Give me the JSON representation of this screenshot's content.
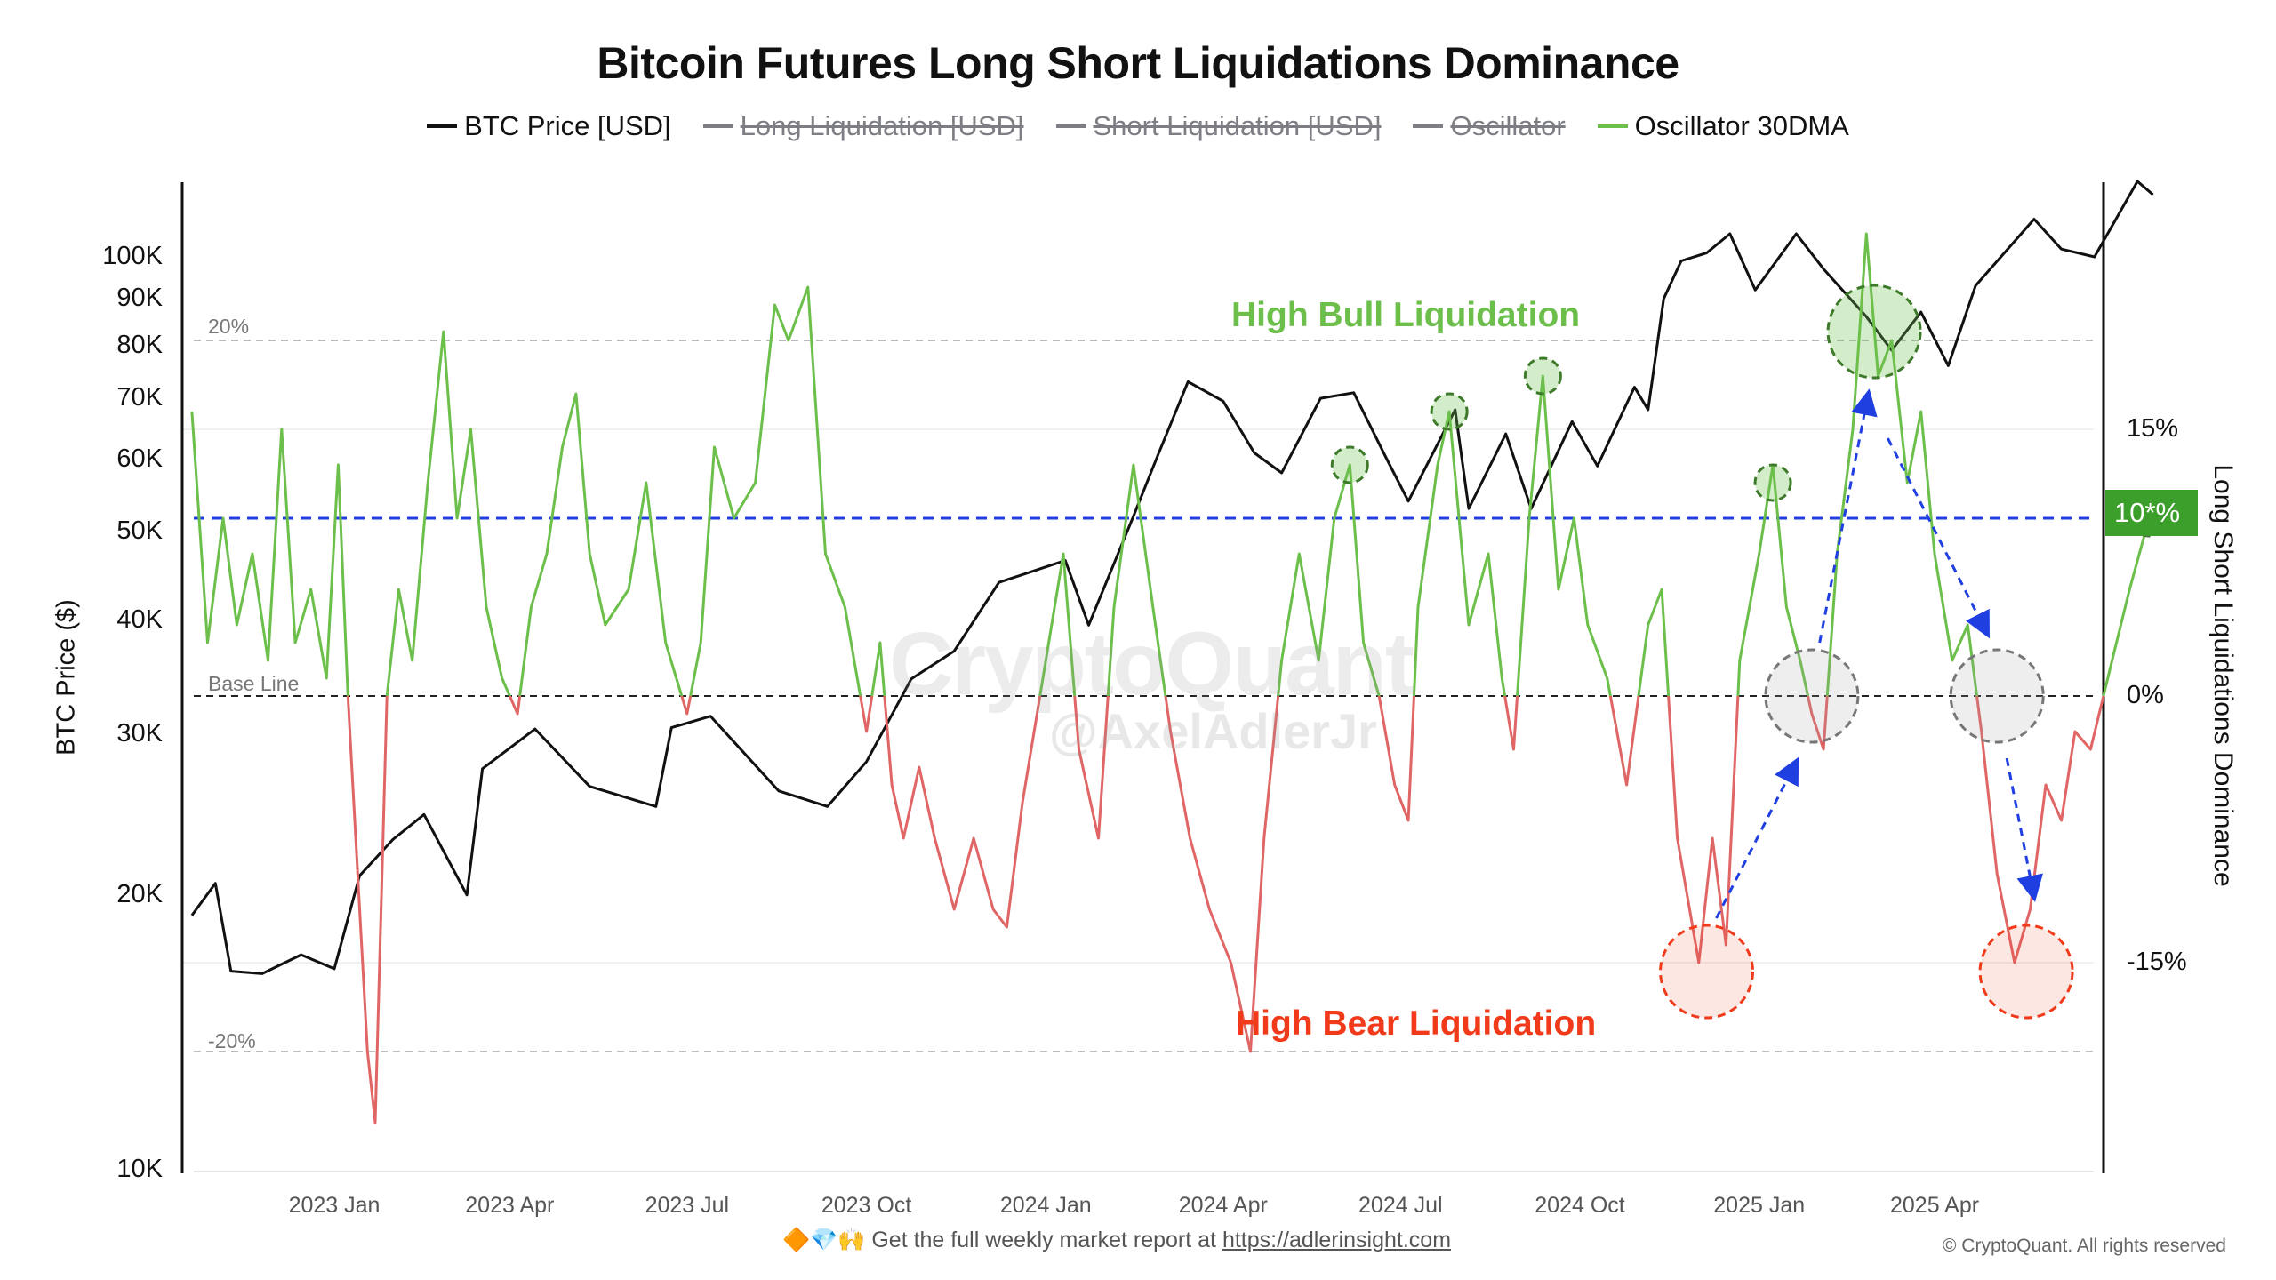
{
  "chart_data": {
    "type": "line",
    "title": "Bitcoin Futures Long Short Liquidations Dominance",
    "legend": [
      {
        "label": "BTC Price [USD]",
        "active": true,
        "color": "#111111"
      },
      {
        "label": "Long Liquidation [USD]",
        "active": false,
        "color": "#7d7d84"
      },
      {
        "label": "Short Liquidation [USD]",
        "active": false,
        "color": "#7d7d84"
      },
      {
        "label": "Oscillator",
        "active": false,
        "color": "#7d7d84"
      },
      {
        "label": "Oscillator 30DMA",
        "active": true,
        "color": "#6dbf4b"
      }
    ],
    "legend_position": "top-center",
    "ylabel_left": "BTC Price ($)",
    "ylabel_right": "Long Short Liquidations Dominance",
    "y_left_scale": "log",
    "y_left_range": [
      10000,
      140000
    ],
    "y_left_ticks": [
      {
        "value": 100000,
        "label": "100K"
      },
      {
        "value": 90000,
        "label": "90K"
      },
      {
        "value": 80000,
        "label": "80K"
      },
      {
        "value": 70000,
        "label": "70K"
      },
      {
        "value": 60000,
        "label": "60K"
      },
      {
        "value": 50000,
        "label": "50K"
      },
      {
        "value": 40000,
        "label": "40K"
      },
      {
        "value": 30000,
        "label": "30K"
      },
      {
        "value": 20000,
        "label": "20K"
      },
      {
        "value": 10000,
        "label": "10K"
      }
    ],
    "y_right_range": [
      -26,
      29
    ],
    "y_right_ticks": [
      {
        "value": 15,
        "label": "15%"
      },
      {
        "value": 0,
        "label": "0%"
      },
      {
        "value": -15,
        "label": "-15%"
      }
    ],
    "current_value_badge": {
      "value": 10,
      "label": "10*%",
      "color": "#3c9e2b"
    },
    "x_ticks": [
      {
        "date": "2023-01-01",
        "label": "2023 Jan"
      },
      {
        "date": "2023-04-01",
        "label": "2023 Apr"
      },
      {
        "date": "2023-07-01",
        "label": "2023 Jul"
      },
      {
        "date": "2023-10-01",
        "label": "2023 Oct"
      },
      {
        "date": "2024-01-01",
        "label": "2024 Jan"
      },
      {
        "date": "2024-04-01",
        "label": "2024 Apr"
      },
      {
        "date": "2024-07-01",
        "label": "2024 Jul"
      },
      {
        "date": "2024-10-01",
        "label": "2024 Oct"
      },
      {
        "date": "2025-01-01",
        "label": "2025 Jan"
      },
      {
        "date": "2025-04-01",
        "label": "2025 Apr"
      }
    ],
    "reference_lines": [
      {
        "value": 20,
        "label": "20%",
        "color": "#bbbbbb",
        "style": "dashed"
      },
      {
        "value": 0,
        "label": "Base Line",
        "color": "#222222",
        "style": "dashed"
      },
      {
        "value": -20,
        "label": "-20%",
        "color": "#bbbbbb",
        "style": "dashed"
      },
      {
        "value": 10,
        "label": "",
        "color": "#1f3fe0",
        "style": "dashed"
      }
    ],
    "annotations_text": [
      {
        "text": "High Bull Liquidation",
        "color": "#6dbf4b"
      },
      {
        "text": "High Bear Liquidation",
        "color": "#f03a1a"
      }
    ],
    "circles": [
      {
        "date": "2024-06-05",
        "value": 13,
        "kind": "bull-small"
      },
      {
        "date": "2024-07-26",
        "value": 16,
        "kind": "bull-small"
      },
      {
        "date": "2024-09-12",
        "value": 18,
        "kind": "bull-small"
      },
      {
        "date": "2025-01-08",
        "value": 12,
        "kind": "bull-small"
      },
      {
        "date": "2025-03-01",
        "value": 20.5,
        "kind": "bull-big"
      },
      {
        "date": "2025-01-28",
        "value": 0,
        "kind": "neutral"
      },
      {
        "date": "2025-05-03",
        "value": 0,
        "kind": "neutral"
      },
      {
        "date": "2024-12-05",
        "value": -15.5,
        "kind": "bear"
      },
      {
        "date": "2025-05-18",
        "value": -15.5,
        "kind": "bear"
      },
      {
        "date": "2025-07-20",
        "value": 10,
        "kind": "current"
      }
    ],
    "arrows": [
      {
        "from": [
          "2024-12-10",
          -12.5
        ],
        "to": [
          "2025-01-20",
          -3.7
        ]
      },
      {
        "from": [
          "2025-02-01",
          3
        ],
        "to": [
          "2025-02-26",
          17
        ]
      },
      {
        "from": [
          "2025-03-08",
          14.5
        ],
        "to": [
          "2025-04-28",
          3.5
        ]
      },
      {
        "from": [
          "2025-05-08",
          -3.5
        ],
        "to": [
          "2025-05-22",
          -11.3
        ]
      }
    ],
    "series": [
      {
        "name": "BTC Price [USD]",
        "axis": "left",
        "color": "#111111",
        "points": [
          [
            "2022-10-20",
            19000
          ],
          [
            "2022-11-01",
            20600
          ],
          [
            "2022-11-09",
            16500
          ],
          [
            "2022-11-25",
            16400
          ],
          [
            "2022-12-15",
            17200
          ],
          [
            "2023-01-01",
            16600
          ],
          [
            "2023-01-14",
            21000
          ],
          [
            "2023-01-31",
            23000
          ],
          [
            "2023-02-16",
            24500
          ],
          [
            "2023-03-10",
            20000
          ],
          [
            "2023-03-18",
            27500
          ],
          [
            "2023-04-14",
            30400
          ],
          [
            "2023-05-12",
            26300
          ],
          [
            "2023-06-15",
            25000
          ],
          [
            "2023-06-23",
            30500
          ],
          [
            "2023-07-13",
            31400
          ],
          [
            "2023-08-17",
            26000
          ],
          [
            "2023-09-11",
            25000
          ],
          [
            "2023-10-01",
            28000
          ],
          [
            "2023-10-24",
            34500
          ],
          [
            "2023-11-15",
            37000
          ],
          [
            "2023-12-08",
            44000
          ],
          [
            "2024-01-11",
            46500
          ],
          [
            "2024-01-23",
            39500
          ],
          [
            "2024-02-15",
            52000
          ],
          [
            "2024-02-28",
            61000
          ],
          [
            "2024-03-14",
            73000
          ],
          [
            "2024-04-01",
            69500
          ],
          [
            "2024-04-17",
            61000
          ],
          [
            "2024-05-01",
            58000
          ],
          [
            "2024-05-21",
            70000
          ],
          [
            "2024-06-07",
            71000
          ],
          [
            "2024-06-24",
            60000
          ],
          [
            "2024-07-05",
            54000
          ],
          [
            "2024-07-29",
            68000
          ],
          [
            "2024-08-05",
            53000
          ],
          [
            "2024-08-24",
            64000
          ],
          [
            "2024-09-06",
            53000
          ],
          [
            "2024-09-27",
            66000
          ],
          [
            "2024-10-10",
            59000
          ],
          [
            "2024-10-29",
            72000
          ],
          [
            "2024-11-05",
            68000
          ],
          [
            "2024-11-13",
            90000
          ],
          [
            "2024-11-22",
            99000
          ],
          [
            "2024-12-05",
            101000
          ],
          [
            "2024-12-17",
            106000
          ],
          [
            "2024-12-30",
            92000
          ],
          [
            "2025-01-20",
            106000
          ],
          [
            "2025-02-03",
            97000
          ],
          [
            "2025-02-25",
            86000
          ],
          [
            "2025-03-10",
            79000
          ],
          [
            "2025-03-25",
            87000
          ],
          [
            "2025-04-08",
            76000
          ],
          [
            "2025-04-22",
            93000
          ],
          [
            "2025-05-22",
            110000
          ],
          [
            "2025-06-05",
            102000
          ],
          [
            "2025-06-22",
            100000
          ],
          [
            "2025-07-14",
            121000
          ],
          [
            "2025-07-22",
            117000
          ]
        ]
      },
      {
        "name": "Oscillator 30DMA",
        "axis": "right",
        "color_positive": "#6dbf4b",
        "color_negative": "#e06666",
        "points": [
          [
            "2022-10-20",
            16
          ],
          [
            "2022-10-28",
            3
          ],
          [
            "2022-11-05",
            10
          ],
          [
            "2022-11-12",
            4
          ],
          [
            "2022-11-20",
            8
          ],
          [
            "2022-11-28",
            2
          ],
          [
            "2022-12-05",
            15
          ],
          [
            "2022-12-12",
            3
          ],
          [
            "2022-12-20",
            6
          ],
          [
            "2022-12-28",
            1
          ],
          [
            "2023-01-03",
            13
          ],
          [
            "2023-01-08",
            0
          ],
          [
            "2023-01-12",
            -8
          ],
          [
            "2023-01-18",
            -20
          ],
          [
            "2023-01-22",
            -24
          ],
          [
            "2023-01-28",
            0
          ],
          [
            "2023-02-03",
            6
          ],
          [
            "2023-02-10",
            2
          ],
          [
            "2023-02-18",
            12
          ],
          [
            "2023-02-26",
            20.5
          ],
          [
            "2023-03-05",
            10
          ],
          [
            "2023-03-12",
            15
          ],
          [
            "2023-03-20",
            5
          ],
          [
            "2023-03-28",
            1
          ],
          [
            "2023-04-05",
            -1
          ],
          [
            "2023-04-12",
            5
          ],
          [
            "2023-04-20",
            8
          ],
          [
            "2023-04-28",
            14
          ],
          [
            "2023-05-05",
            17
          ],
          [
            "2023-05-12",
            8
          ],
          [
            "2023-05-20",
            4
          ],
          [
            "2023-06-01",
            6
          ],
          [
            "2023-06-10",
            12
          ],
          [
            "2023-06-20",
            3
          ],
          [
            "2023-07-01",
            -1
          ],
          [
            "2023-07-08",
            3
          ],
          [
            "2023-07-15",
            14
          ],
          [
            "2023-07-25",
            10
          ],
          [
            "2023-08-05",
            12
          ],
          [
            "2023-08-15",
            22
          ],
          [
            "2023-08-22",
            20
          ],
          [
            "2023-09-01",
            23
          ],
          [
            "2023-09-10",
            8
          ],
          [
            "2023-09-20",
            5
          ],
          [
            "2023-10-01",
            -2
          ],
          [
            "2023-10-08",
            3
          ],
          [
            "2023-10-14",
            -5
          ],
          [
            "2023-10-20",
            -8
          ],
          [
            "2023-10-28",
            -4
          ],
          [
            "2023-11-05",
            -8
          ],
          [
            "2023-11-15",
            -12
          ],
          [
            "2023-11-25",
            -8
          ],
          [
            "2023-12-05",
            -12
          ],
          [
            "2023-12-12",
            -13
          ],
          [
            "2023-12-20",
            -6
          ],
          [
            "2024-01-01",
            2
          ],
          [
            "2024-01-10",
            8
          ],
          [
            "2024-01-18",
            -3
          ],
          [
            "2024-01-28",
            -8
          ],
          [
            "2024-02-05",
            5
          ],
          [
            "2024-02-15",
            13
          ],
          [
            "2024-02-25",
            5
          ],
          [
            "2024-03-05",
            -2
          ],
          [
            "2024-03-15",
            -8
          ],
          [
            "2024-03-25",
            -12
          ],
          [
            "2024-04-05",
            -15
          ],
          [
            "2024-04-15",
            -20
          ],
          [
            "2024-04-22",
            -8
          ],
          [
            "2024-05-01",
            2
          ],
          [
            "2024-05-10",
            8
          ],
          [
            "2024-05-20",
            2
          ],
          [
            "2024-05-28",
            10
          ],
          [
            "2024-06-05",
            13
          ],
          [
            "2024-06-12",
            3
          ],
          [
            "2024-06-20",
            0
          ],
          [
            "2024-06-28",
            -5
          ],
          [
            "2024-07-05",
            -7
          ],
          [
            "2024-07-10",
            5
          ],
          [
            "2024-07-20",
            13
          ],
          [
            "2024-07-26",
            16
          ],
          [
            "2024-08-05",
            4
          ],
          [
            "2024-08-15",
            8
          ],
          [
            "2024-08-22",
            1
          ],
          [
            "2024-08-28",
            -3
          ],
          [
            "2024-09-05",
            10
          ],
          [
            "2024-09-12",
            18
          ],
          [
            "2024-09-20",
            6
          ],
          [
            "2024-09-28",
            10
          ],
          [
            "2024-10-05",
            4
          ],
          [
            "2024-10-15",
            1
          ],
          [
            "2024-10-25",
            -5
          ],
          [
            "2024-11-05",
            4
          ],
          [
            "2024-11-12",
            6
          ],
          [
            "2024-11-20",
            -8
          ],
          [
            "2024-12-01",
            -15
          ],
          [
            "2024-12-08",
            -8
          ],
          [
            "2024-12-15",
            -14
          ],
          [
            "2024-12-22",
            2
          ],
          [
            "2025-01-01",
            8
          ],
          [
            "2025-01-08",
            13
          ],
          [
            "2025-01-15",
            5
          ],
          [
            "2025-01-22",
            2
          ],
          [
            "2025-01-28",
            -1
          ],
          [
            "2025-02-03",
            -3
          ],
          [
            "2025-02-10",
            8
          ],
          [
            "2025-02-18",
            15
          ],
          [
            "2025-02-25",
            26
          ],
          [
            "2025-03-03",
            18
          ],
          [
            "2025-03-10",
            20
          ],
          [
            "2025-03-18",
            12
          ],
          [
            "2025-03-25",
            16
          ],
          [
            "2025-04-01",
            8
          ],
          [
            "2025-04-10",
            2
          ],
          [
            "2025-04-18",
            4
          ],
          [
            "2025-04-25",
            -2
          ],
          [
            "2025-05-03",
            -10
          ],
          [
            "2025-05-12",
            -15
          ],
          [
            "2025-05-20",
            -12
          ],
          [
            "2025-05-28",
            -5
          ],
          [
            "2025-06-05",
            -7
          ],
          [
            "2025-06-12",
            -2
          ],
          [
            "2025-06-20",
            -3
          ],
          [
            "2025-07-01",
            2
          ],
          [
            "2025-07-10",
            6
          ],
          [
            "2025-07-20",
            10
          ]
        ]
      }
    ]
  },
  "watermark": {
    "brand": "CryptoQuant",
    "author": "@AxelAdlerJr"
  },
  "footer": {
    "emoji": "🔶💎🙌",
    "text": "Get the full weekly market report at ",
    "link": "https://adlerinsight.com",
    "copyright": "© CryptoQuant. All rights reserved"
  }
}
